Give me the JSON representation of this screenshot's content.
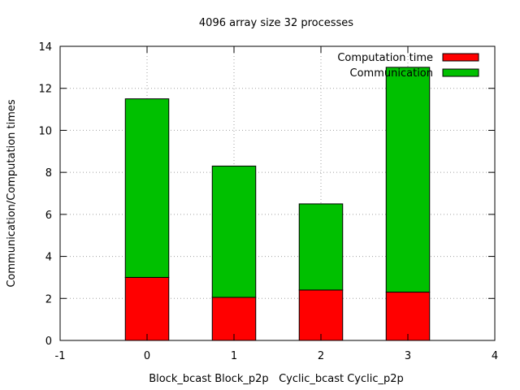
{
  "chart_data": {
    "type": "bar",
    "title": "4096 array size 32 processes",
    "xlabel": "Block_bcast Block_p2p   Cyclic_bcast Cyclic_p2p",
    "ylabel": "Communication/Computation times",
    "xlim": [
      -1,
      4
    ],
    "ylim": [
      0,
      14
    ],
    "x_ticks": [
      -1,
      0,
      1,
      2,
      3,
      4
    ],
    "y_ticks": [
      0,
      2,
      4,
      6,
      8,
      10,
      12,
      14
    ],
    "grid": true,
    "stacked": true,
    "legend_position": "top-right",
    "x": [
      0,
      1,
      2,
      3
    ],
    "series": [
      {
        "name": "Computation time",
        "color": "#ff0000",
        "values": [
          3.0,
          2.05,
          2.4,
          2.3
        ]
      },
      {
        "name": "Communication",
        "color": "#00c000",
        "values": [
          8.5,
          6.25,
          4.1,
          10.7
        ]
      }
    ]
  }
}
